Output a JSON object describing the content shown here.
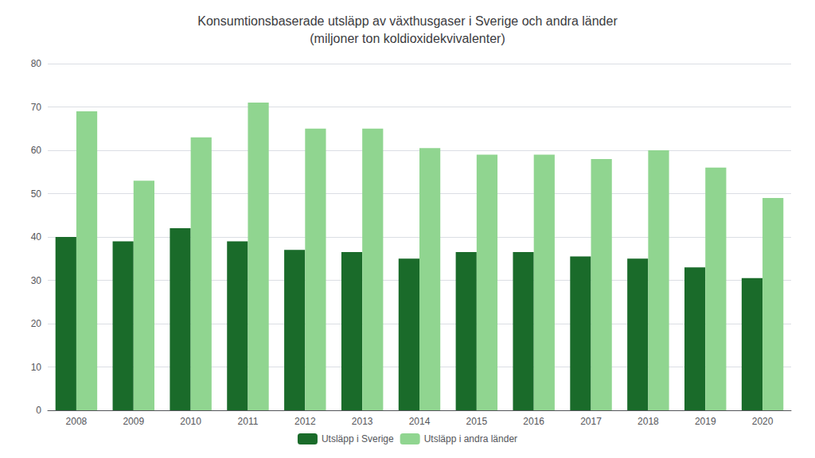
{
  "chart_data": {
    "type": "bar",
    "title": "Konsumtionsbaserade utsläpp av växthusgaser i Sverige och andra länder\n(miljoner ton koldioxidekvivalenter)",
    "categories": [
      "2008",
      "2009",
      "2010",
      "2011",
      "2012",
      "2013",
      "2014",
      "2015",
      "2016",
      "2017",
      "2018",
      "2019",
      "2020"
    ],
    "series": [
      {
        "name": "Utsläpp i Sverige",
        "color": "#1a6b2a",
        "values": [
          40,
          39,
          42,
          39,
          37,
          36.5,
          35,
          36.5,
          36.5,
          35.5,
          35,
          33,
          30.5
        ]
      },
      {
        "name": "Utsläpp i andra länder",
        "color": "#90d590",
        "values": [
          69,
          53,
          63,
          71,
          65,
          65,
          60.5,
          59,
          59,
          58,
          60,
          56,
          49
        ]
      }
    ],
    "ylim": [
      0,
      80
    ],
    "yticks": [
      0,
      10,
      20,
      30,
      40,
      50,
      60,
      70,
      80
    ],
    "grid": true,
    "legend": "bottom"
  }
}
